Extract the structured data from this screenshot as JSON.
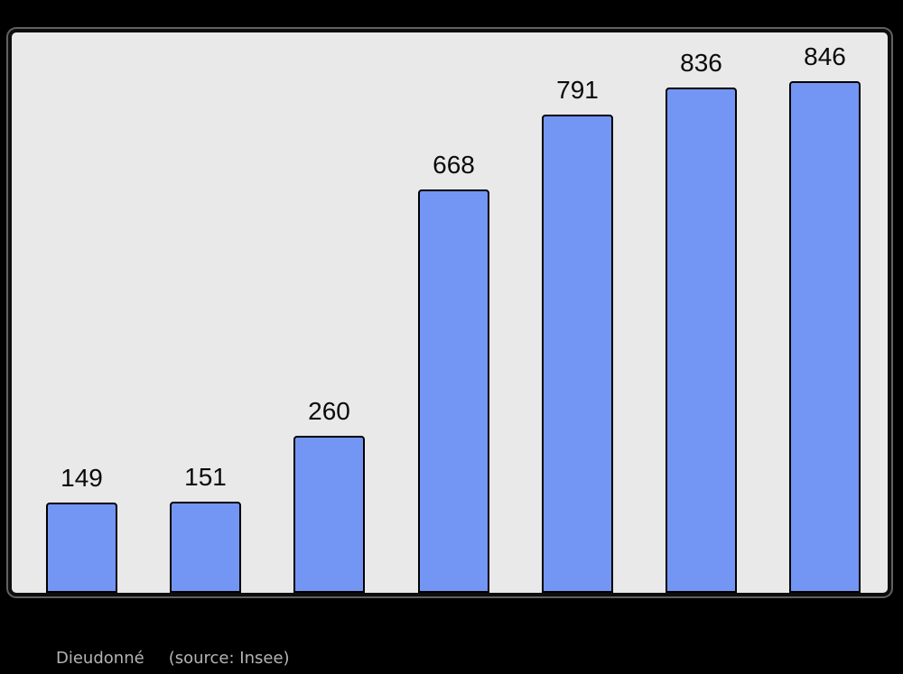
{
  "page": {
    "background": "#000000"
  },
  "chart_data": {
    "type": "bar",
    "values": [
      149,
      151,
      260,
      668,
      791,
      836,
      846
    ],
    "show_data_labels": true,
    "title": "",
    "xlabel": "",
    "ylabel": "",
    "ylim": [
      0,
      927
    ],
    "grid": false,
    "legend": false,
    "bar_color": "#7396f5",
    "bar_border_color": "#000000",
    "plot_background": "#e9e9e9",
    "frame_border_color": "#0d0d0d",
    "label_color": "#0a0a0a"
  },
  "caption": {
    "title": "Dieudonné",
    "source": "(source: Insee)",
    "color": "#b4b4b4"
  }
}
